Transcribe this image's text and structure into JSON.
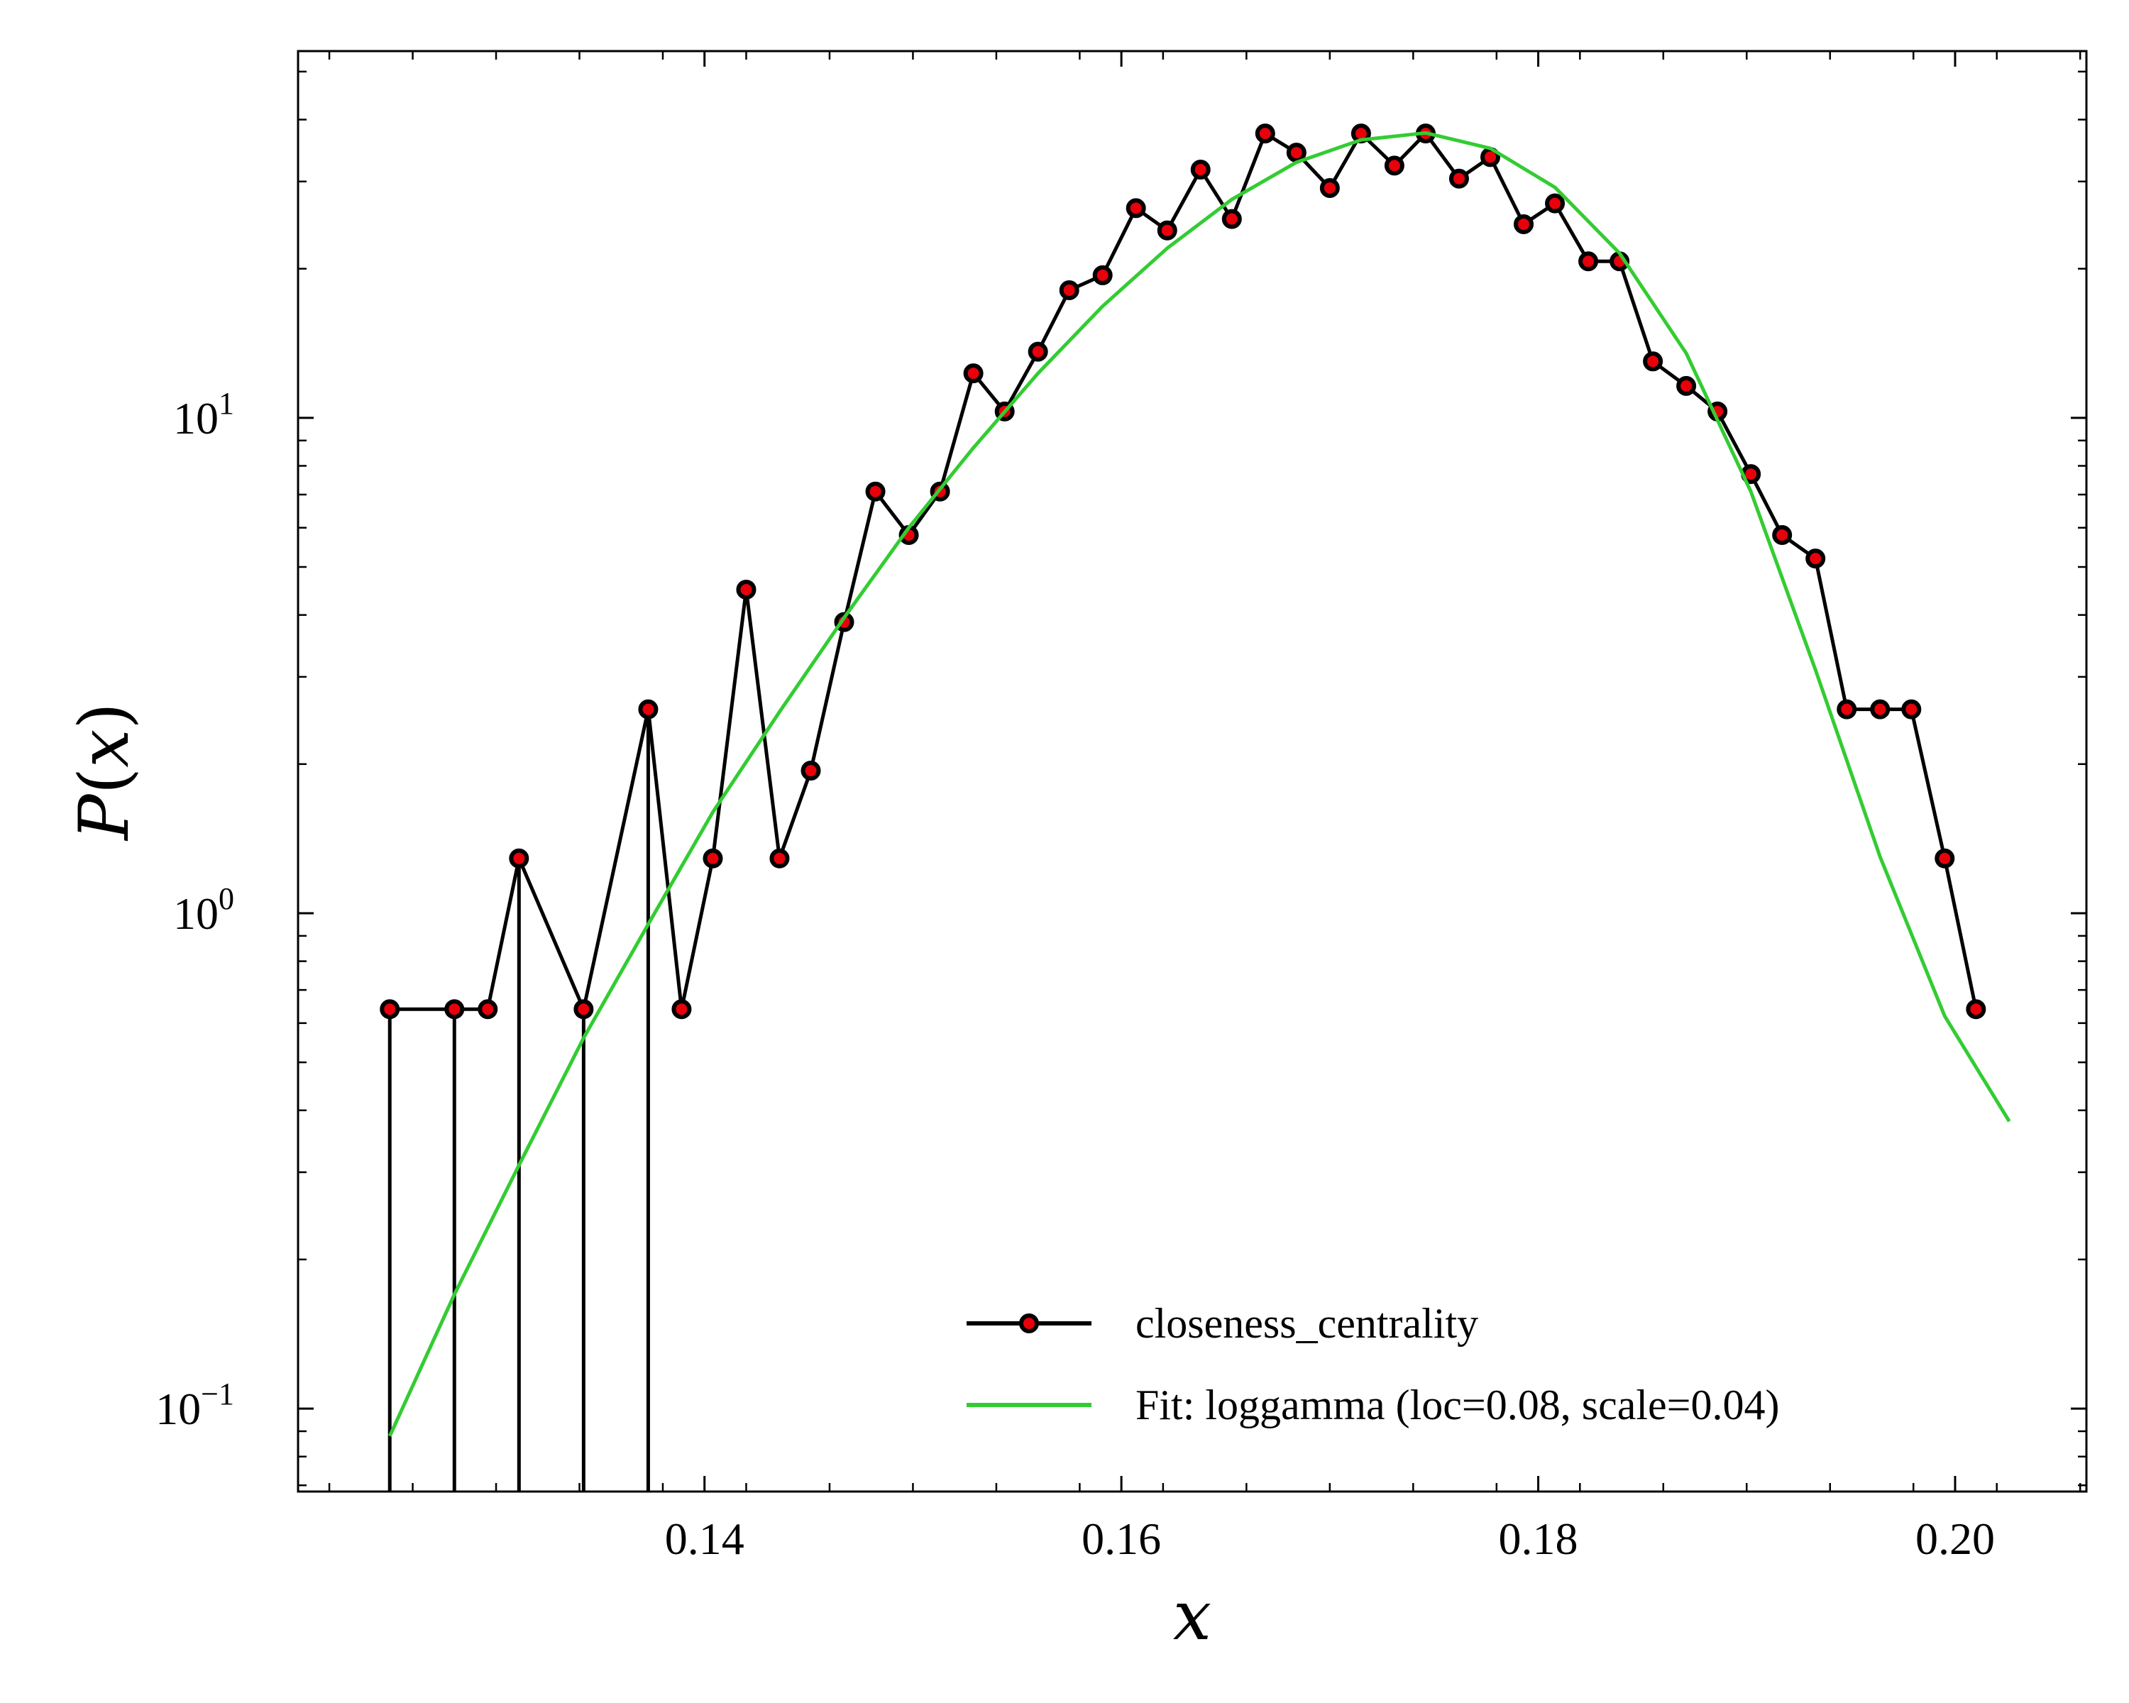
{
  "chart_data": {
    "type": "line",
    "title": "",
    "xlabel": "x",
    "ylabel": "P(x)",
    "ylabel_parts": {
      "func": "P",
      "open": "(",
      "var": "x",
      "close": ")"
    },
    "y_scale": "log",
    "xlim": [
      0.1205,
      0.2063
    ],
    "ylim": [
      0.068,
      55
    ],
    "x_ticks": [
      {
        "value": 0.14,
        "label": "0.14"
      },
      {
        "value": 0.16,
        "label": "0.16"
      },
      {
        "value": 0.18,
        "label": "0.18"
      },
      {
        "value": 0.2,
        "label": "0.20"
      }
    ],
    "y_ticks": [
      {
        "value": 0.1,
        "base": "10",
        "exp": "−1"
      },
      {
        "value": 1,
        "base": "10",
        "exp": "0"
      },
      {
        "value": 10,
        "base": "10",
        "exp": "1"
      }
    ],
    "grid": false,
    "legend_position": "lower-right",
    "series": [
      {
        "name": "closeness_centrality",
        "style": "line-markers",
        "color": "#000000",
        "marker_color": "#e8000b",
        "x": [
          0.1249,
          0.128,
          0.1296,
          0.1311,
          0.1342,
          0.1373,
          0.1389,
          0.1404,
          0.142,
          0.1436,
          0.1451,
          0.1467,
          0.1482,
          0.1498,
          0.1513,
          0.1529,
          0.1544,
          0.156,
          0.1575,
          0.1591,
          0.1607,
          0.1622,
          0.1638,
          0.1653,
          0.1669,
          0.1684,
          0.17,
          0.1715,
          0.1731,
          0.1746,
          0.1762,
          0.1777,
          0.1793,
          0.1808,
          0.1824,
          0.1839,
          0.1855,
          0.1871,
          0.1886,
          0.1902,
          0.1917,
          0.1933,
          0.1948,
          0.1964,
          0.1979,
          0.1995,
          0.201
        ],
        "y": [
          0.64,
          0.64,
          0.64,
          1.29,
          0.64,
          2.58,
          0.64,
          1.29,
          4.5,
          1.29,
          1.94,
          3.87,
          7.1,
          5.8,
          7.1,
          12.3,
          10.3,
          13.6,
          18.1,
          19.4,
          26.5,
          23.9,
          31.7,
          25.2,
          37.5,
          34.3,
          29.1,
          37.5,
          32.3,
          37.5,
          30.4,
          33.6,
          24.6,
          27.1,
          20.7,
          20.7,
          13.0,
          11.6,
          10.3,
          7.7,
          5.8,
          5.2,
          2.58,
          2.58,
          2.58,
          1.29,
          0.64
        ],
        "drop_to_axis": [
          0.1249,
          0.128,
          0.1311,
          0.1342,
          0.1373
        ]
      },
      {
        "name": "Fit: loggamma (loc=0.08, scale=0.04)",
        "style": "line",
        "color": "#33cc33",
        "x": [
          0.1249,
          0.128,
          0.1311,
          0.1342,
          0.1373,
          0.1404,
          0.1436,
          0.1467,
          0.1498,
          0.1529,
          0.156,
          0.1591,
          0.1622,
          0.1653,
          0.1684,
          0.1715,
          0.1746,
          0.1777,
          0.1808,
          0.1839,
          0.1871,
          0.1902,
          0.1933,
          0.1964,
          0.1995,
          0.2026
        ],
        "y": [
          0.088,
          0.17,
          0.31,
          0.56,
          0.95,
          1.6,
          2.55,
          3.95,
          6.0,
          8.7,
          12.3,
          16.8,
          22.0,
          27.6,
          32.8,
          36.4,
          37.6,
          35.0,
          29.2,
          21.5,
          13.5,
          7.1,
          3.1,
          1.3,
          0.62,
          0.38
        ]
      }
    ]
  }
}
